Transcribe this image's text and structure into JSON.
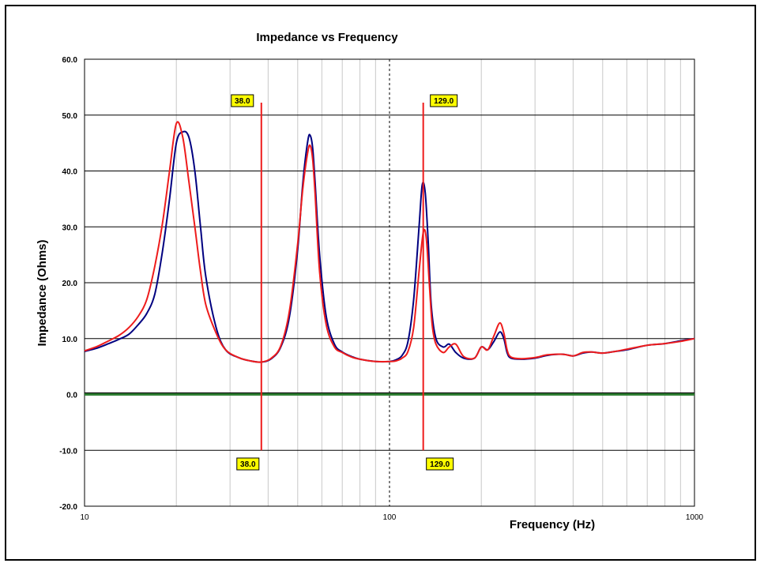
{
  "chart_data": {
    "type": "line",
    "title": "Impedance vs Frequency",
    "xlabel": "Frequency (Hz)",
    "ylabel": "Impedance (Ohms)",
    "x_scale": "log",
    "xlim": [
      10,
      1000
    ],
    "ylim": [
      -20,
      60
    ],
    "x_ticks": [
      "10",
      "100",
      "1000"
    ],
    "y_ticks": [
      "60.0",
      "50.0",
      "40.0",
      "30.0",
      "20.0",
      "10.0",
      "0.0",
      "-10.0",
      "-20.0"
    ],
    "grid": true,
    "colors": {
      "series1": "#000080",
      "series2": "#ee1c1c",
      "zero_line": "#2e7d32",
      "marker": "#ee1c1c",
      "marker_label_bg": "#ffff00"
    },
    "markers": [
      {
        "x": 38.0,
        "label_top": "38.0",
        "label_bottom": "38.0"
      },
      {
        "x": 129.0,
        "label_top": "129.0",
        "label_bottom": "129.0"
      }
    ],
    "series": [
      {
        "color": "#000080",
        "x": [
          10,
          11,
          12,
          13,
          14,
          15,
          16,
          17,
          18,
          19,
          20,
          21,
          22,
          23,
          24,
          25,
          27,
          29,
          32,
          35,
          38,
          41,
          44,
          47,
          50,
          52,
          54,
          55,
          56,
          57,
          59,
          62,
          66,
          70,
          75,
          80,
          90,
          100,
          105,
          110,
          115,
          120,
          125,
          128,
          131,
          134,
          137,
          142,
          150,
          157,
          165,
          175,
          190,
          200,
          210,
          220,
          230,
          237,
          243,
          250,
          270,
          300,
          330,
          370,
          400,
          430,
          460,
          500,
          550,
          600,
          700,
          800,
          900,
          1000
        ],
        "y": [
          7.7,
          8.3,
          9.1,
          9.9,
          10.8,
          12.5,
          14.5,
          18.0,
          25.5,
          35.0,
          45.0,
          47.0,
          46.0,
          40.0,
          30.0,
          21.0,
          12.0,
          8.0,
          6.6,
          6.0,
          5.8,
          6.4,
          8.5,
          14.0,
          26.0,
          38.0,
          45.5,
          46.3,
          44.0,
          38.0,
          25.0,
          14.0,
          9.0,
          7.6,
          6.8,
          6.3,
          5.9,
          5.9,
          6.2,
          7.0,
          9.5,
          17.0,
          30.0,
          37.5,
          36.0,
          27.0,
          16.0,
          10.0,
          8.5,
          9.0,
          7.5,
          6.5,
          6.5,
          8.5,
          8.0,
          9.5,
          11.2,
          10.0,
          7.5,
          6.5,
          6.3,
          6.5,
          7.0,
          7.2,
          6.9,
          7.4,
          7.6,
          7.4,
          7.7,
          8.0,
          8.8,
          9.1,
          9.6,
          10.0
        ]
      },
      {
        "color": "#ee1c1c",
        "x": [
          10,
          11,
          12,
          13,
          14,
          15,
          16,
          17,
          18,
          19,
          20,
          21,
          22,
          23,
          24,
          25,
          27,
          29,
          32,
          35,
          38,
          41,
          44,
          47,
          50,
          52,
          54,
          55,
          56,
          57,
          59,
          62,
          66,
          70,
          75,
          80,
          90,
          100,
          105,
          110,
          115,
          120,
          125,
          129,
          132,
          135,
          138,
          142,
          150,
          157,
          165,
          175,
          190,
          200,
          210,
          220,
          230,
          237,
          243,
          250,
          270,
          300,
          330,
          370,
          400,
          430,
          460,
          500,
          550,
          600,
          700,
          800,
          900,
          1000
        ],
        "y": [
          7.8,
          8.6,
          9.6,
          10.6,
          12.0,
          14.0,
          17.0,
          23.0,
          30.5,
          40.0,
          48.5,
          46.0,
          38.0,
          30.0,
          22.0,
          16.0,
          11.0,
          8.0,
          6.6,
          6.0,
          5.8,
          6.5,
          8.7,
          15.0,
          27.0,
          37.0,
          43.5,
          44.5,
          42.0,
          36.0,
          22.0,
          12.5,
          8.5,
          7.5,
          6.7,
          6.3,
          5.9,
          5.9,
          6.0,
          6.5,
          7.7,
          12.0,
          22.0,
          29.0,
          28.0,
          20.0,
          12.5,
          9.0,
          7.5,
          8.5,
          9.0,
          6.8,
          6.5,
          8.5,
          8.0,
          10.5,
          12.8,
          11.0,
          8.0,
          6.7,
          6.4,
          6.6,
          7.1,
          7.2,
          6.9,
          7.5,
          7.6,
          7.4,
          7.7,
          8.1,
          8.8,
          9.1,
          9.5,
          10.0
        ]
      }
    ]
  }
}
